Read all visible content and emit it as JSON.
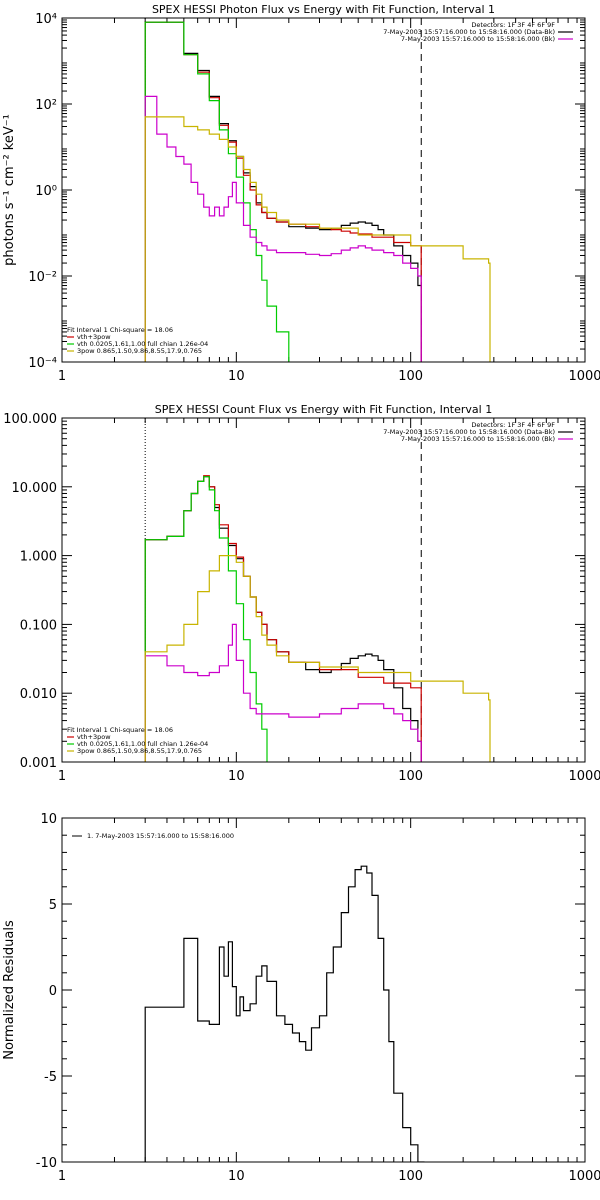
{
  "chart_data": [
    {
      "type": "line",
      "title": "SPEX HESSI Photon Flux vs Energy with Fit Function, Interval 1",
      "ylabel": "photons s⁻¹ cm⁻² keV⁻¹",
      "xscale": "log",
      "yscale": "log",
      "xlim": [
        1,
        1000
      ],
      "ylim": [
        0.0001,
        10000
      ],
      "xticks": [
        1,
        10,
        100,
        1000
      ],
      "xtick_labels": [
        "1",
        "10",
        "100",
        "1000"
      ],
      "yticks": [
        0.0001,
        0.01,
        1,
        100,
        10000
      ],
      "ytick_labels": [
        "10⁻⁴",
        "10⁻²",
        "10⁰",
        "10²",
        "10⁴"
      ],
      "vlines": [
        {
          "x": 3,
          "style": "dotted",
          "color": "#000000"
        },
        {
          "x": 115,
          "style": "dashed",
          "color": "#000000"
        }
      ],
      "legend_top_right": [
        {
          "text": "Detectors: 1F 3F 4F 6F 9F",
          "color": ""
        },
        {
          "text": "7-May-2003 15:57:16.000 to 15:58:16.000 (Data-Bk)",
          "color": "#000000"
        },
        {
          "text": "7-May-2003 15:57:16.000 to 15:58:16.000 (Bk)",
          "color": "#cc00cc"
        }
      ],
      "legend_bottom_left": [
        {
          "text": "Fit Interval 1    Chi-square = 18.06",
          "color": ""
        },
        {
          "text": "vth+3pow",
          "color": "#cc0000"
        },
        {
          "text": "vth 0.0205,1.61,1.00  full chian 1.26e-04",
          "color": "#00cc00"
        },
        {
          "text": "3pow 0.865,1.50,9.86,8.55,17.9,0.765",
          "color": "#c8b400"
        }
      ],
      "series": [
        {
          "color": "#000000",
          "x": [
            3,
            4,
            5,
            6,
            7,
            8,
            9,
            10,
            11,
            12,
            13,
            14,
            15,
            17,
            20,
            25,
            30,
            35,
            40,
            45,
            50,
            55,
            60,
            65,
            70,
            80,
            90,
            100,
            110,
            115
          ],
          "values": [
            8000,
            8000,
            1500,
            600,
            150,
            35,
            14,
            6,
            2.5,
            1.2,
            0.5,
            0.3,
            0.22,
            0.18,
            0.14,
            0.13,
            0.12,
            0.13,
            0.15,
            0.17,
            0.18,
            0.17,
            0.15,
            0.12,
            0.09,
            0.05,
            0.03,
            0.02,
            0.006,
            0.0001
          ]
        },
        {
          "color": "#cc0000",
          "x": [
            3,
            4,
            5,
            6,
            7,
            8,
            9,
            10,
            11,
            12,
            13,
            14,
            15,
            17,
            20,
            25,
            30,
            35,
            40,
            45,
            50,
            60,
            80,
            100,
            115
          ],
          "values": [
            8000,
            8000,
            1400,
            550,
            140,
            32,
            13,
            5.5,
            2.2,
            1.0,
            0.45,
            0.3,
            0.22,
            0.18,
            0.16,
            0.14,
            0.13,
            0.12,
            0.11,
            0.1,
            0.095,
            0.08,
            0.06,
            0.05,
            0.0001
          ]
        },
        {
          "color": "#00cc00",
          "x": [
            3,
            4,
            5,
            6,
            7,
            8,
            9,
            10,
            11,
            12,
            13,
            14,
            15,
            17,
            20
          ],
          "values": [
            8000,
            8000,
            1400,
            500,
            120,
            25,
            7,
            2,
            0.5,
            0.12,
            0.03,
            0.008,
            0.002,
            0.0005,
            0.0001
          ]
        },
        {
          "color": "#cc00cc",
          "x": [
            3,
            3.5,
            4,
            4.5,
            5,
            5.5,
            6,
            6.5,
            7,
            7.5,
            8,
            8.5,
            9,
            9.5,
            10,
            11,
            12,
            13,
            14,
            15,
            17,
            20,
            25,
            30,
            35,
            40,
            45,
            50,
            55,
            60,
            70,
            80,
            90,
            100,
            110,
            115
          ],
          "values": [
            150,
            20,
            10,
            6,
            4,
            1.5,
            0.8,
            0.4,
            0.25,
            0.4,
            0.25,
            0.4,
            0.7,
            1.5,
            0.5,
            0.15,
            0.08,
            0.06,
            0.05,
            0.04,
            0.035,
            0.035,
            0.032,
            0.03,
            0.033,
            0.04,
            0.045,
            0.05,
            0.045,
            0.04,
            0.035,
            0.03,
            0.02,
            0.015,
            0.01,
            0.0001
          ]
        },
        {
          "color": "#c8b400",
          "x": [
            3,
            4,
            5,
            6,
            7,
            8,
            9,
            10,
            11,
            12,
            13,
            14,
            15,
            17,
            20,
            30,
            50,
            100,
            200,
            280,
            285
          ],
          "values": [
            50,
            50,
            30,
            25,
            20,
            15,
            10,
            6,
            3,
            1.5,
            0.8,
            0.4,
            0.3,
            0.2,
            0.16,
            0.13,
            0.09,
            0.05,
            0.025,
            0.02,
            0.0001
          ]
        }
      ]
    },
    {
      "type": "line",
      "title": "SPEX HESSI Count Flux vs Energy with Fit Function, Interval 1",
      "xscale": "log",
      "yscale": "log",
      "xlim": [
        1,
        1000
      ],
      "ylim": [
        0.001,
        100
      ],
      "xticks": [
        1,
        10,
        100,
        1000
      ],
      "xtick_labels": [
        "1",
        "10",
        "100",
        "1000"
      ],
      "yticks": [
        0.001,
        0.01,
        0.1,
        1,
        10,
        100
      ],
      "ytick_labels": [
        "0.001",
        "0.010",
        "0.100",
        "1.000",
        "10.000",
        "100.000"
      ],
      "vlines": [
        {
          "x": 3,
          "style": "dotted",
          "color": "#000000"
        },
        {
          "x": 115,
          "style": "dashed",
          "color": "#000000"
        }
      ],
      "legend_top_right": [
        {
          "text": "Detectors: 1F 3F 4F 6F 9F",
          "color": ""
        },
        {
          "text": "7-May-2003 15:57:16.000 to 15:58:16.000 (Data-Bk)",
          "color": "#000000"
        },
        {
          "text": "7-May-2003 15:57:16.000 to 15:58:16.000 (Bk)",
          "color": "#cc00cc"
        }
      ],
      "legend_bottom_left": [
        {
          "text": "Fit Interval 1    Chi-square = 18.06",
          "color": ""
        },
        {
          "text": "vth+3pow",
          "color": "#cc0000"
        },
        {
          "text": "vth 0.0205,1.61,1.00  full chian 1.26e-04",
          "color": "#00cc00"
        },
        {
          "text": "3pow 0.865,1.50,9.86,8.55,17.9,0.765",
          "color": "#c8b400"
        }
      ],
      "series": [
        {
          "color": "#000000",
          "x": [
            3,
            4,
            5,
            5.5,
            6,
            6.5,
            7,
            7.5,
            8,
            9,
            10,
            11,
            12,
            13,
            14,
            15,
            17,
            20,
            25,
            30,
            35,
            40,
            45,
            50,
            55,
            60,
            65,
            70,
            80,
            90,
            100,
            110,
            115
          ],
          "values": [
            1.7,
            1.9,
            4.5,
            8,
            12,
            14,
            10,
            5,
            2.5,
            1.4,
            0.9,
            0.5,
            0.25,
            0.15,
            0.1,
            0.06,
            0.04,
            0.028,
            0.022,
            0.02,
            0.022,
            0.027,
            0.032,
            0.035,
            0.037,
            0.035,
            0.03,
            0.022,
            0.012,
            0.006,
            0.004,
            0.002,
            0.001
          ]
        },
        {
          "color": "#cc0000",
          "x": [
            3,
            4,
            5,
            5.5,
            6,
            6.5,
            7,
            7.5,
            8,
            9,
            10,
            11,
            12,
            13,
            14,
            15,
            17,
            20,
            30,
            50,
            70,
            100,
            115
          ],
          "values": [
            1.7,
            1.9,
            4.5,
            8,
            12,
            14.5,
            10,
            5.5,
            2.8,
            1.5,
            0.95,
            0.5,
            0.25,
            0.15,
            0.1,
            0.06,
            0.04,
            0.028,
            0.022,
            0.017,
            0.014,
            0.012,
            0.001
          ]
        },
        {
          "color": "#00cc00",
          "x": [
            3,
            4,
            5,
            5.5,
            6,
            6.5,
            7,
            7.5,
            8,
            9,
            10,
            11,
            12,
            13,
            14,
            15
          ],
          "values": [
            1.7,
            1.9,
            4.5,
            8,
            12,
            14,
            9,
            4.5,
            1.8,
            0.6,
            0.2,
            0.06,
            0.02,
            0.007,
            0.003,
            0.001
          ]
        },
        {
          "color": "#cc00cc",
          "x": [
            3,
            4,
            5,
            6,
            7,
            8,
            9,
            9.5,
            10,
            11,
            12,
            13,
            15,
            17,
            20,
            25,
            30,
            40,
            50,
            60,
            70,
            80,
            90,
            100,
            110,
            115
          ],
          "values": [
            0.035,
            0.025,
            0.02,
            0.018,
            0.02,
            0.025,
            0.05,
            0.1,
            0.03,
            0.01,
            0.006,
            0.005,
            0.005,
            0.005,
            0.0045,
            0.0045,
            0.005,
            0.006,
            0.007,
            0.007,
            0.006,
            0.005,
            0.004,
            0.003,
            0.002,
            0.001
          ]
        },
        {
          "color": "#c8b400",
          "x": [
            3,
            4,
            5,
            6,
            7,
            8,
            9,
            10,
            11,
            12,
            13,
            14,
            15,
            17,
            20,
            30,
            50,
            100,
            200,
            280,
            285
          ],
          "values": [
            0.04,
            0.05,
            0.1,
            0.3,
            0.6,
            1.0,
            1.0,
            0.8,
            0.5,
            0.25,
            0.13,
            0.07,
            0.05,
            0.035,
            0.028,
            0.024,
            0.02,
            0.015,
            0.01,
            0.008,
            0.001
          ]
        }
      ]
    },
    {
      "type": "line",
      "ylabel": "Normalized Residuals",
      "xscale": "log",
      "xlim": [
        1,
        1000
      ],
      "ylim": [
        -10,
        10
      ],
      "xticks": [
        1,
        10,
        100,
        1000
      ],
      "xtick_labels": [
        "1",
        "10",
        "100",
        "1000"
      ],
      "yticks": [
        -10,
        -5,
        0,
        5,
        10
      ],
      "ytick_labels": [
        "-10",
        "-5",
        "0",
        "5",
        "10"
      ],
      "legend_top_left": [
        {
          "text": "1.  7-May-2003 15:57:16.000 to 15:58:16.000",
          "color": "#000000"
        }
      ],
      "series": [
        {
          "color": "#000000",
          "x": [
            3,
            4,
            5,
            6,
            7,
            8,
            8.5,
            9,
            9.5,
            10,
            10.5,
            11,
            12,
            13,
            14,
            15,
            17,
            19,
            21,
            23,
            25,
            27,
            30,
            33,
            36,
            40,
            44,
            48,
            52,
            56,
            60,
            65,
            70,
            75,
            80,
            90,
            100,
            110,
            120
          ],
          "values": [
            -1,
            -1,
            3,
            -1.8,
            -2,
            2.5,
            0.8,
            2.8,
            0.2,
            -1.5,
            -0.4,
            -1.2,
            -0.8,
            0.8,
            1.4,
            0.5,
            -1.5,
            -2,
            -2.5,
            -3,
            -3.5,
            -2.2,
            -1.5,
            1,
            2.5,
            4.5,
            6,
            7,
            7.2,
            6.8,
            5.5,
            3,
            0,
            -3,
            -6,
            -8,
            -9,
            -10,
            -10
          ]
        }
      ]
    }
  ]
}
